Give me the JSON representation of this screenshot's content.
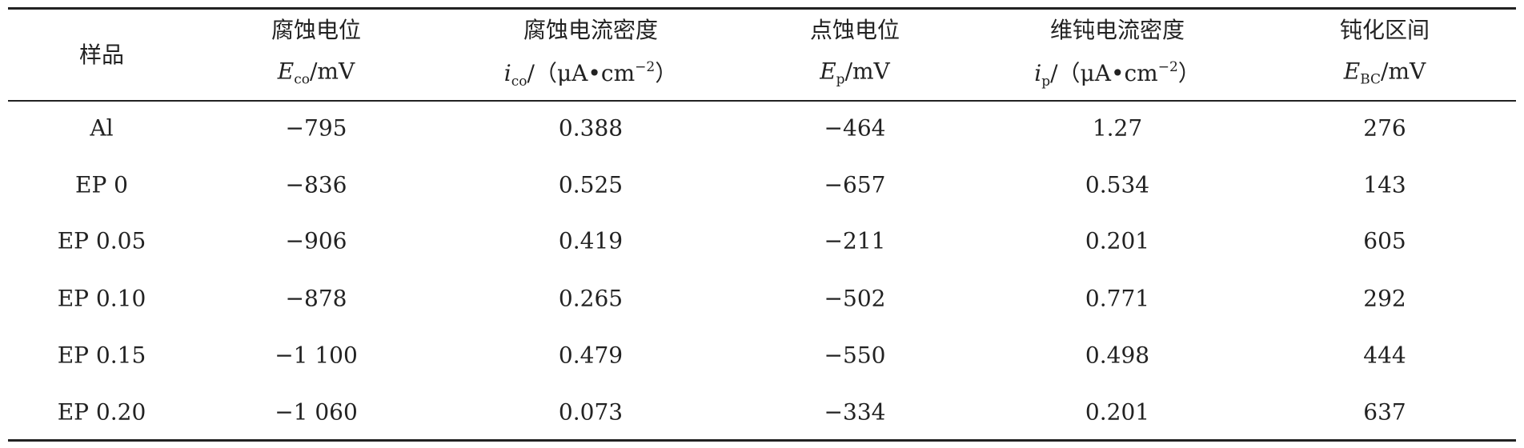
{
  "table": {
    "header": [
      {
        "name": "样品"
      },
      {
        "name": "腐蚀电位",
        "symbol": "E",
        "sub": "co",
        "unit": "/mV"
      },
      {
        "name": "腐蚀电流密度",
        "symbol": "i",
        "sub": "co",
        "unit": "/（μA•cm",
        "sup": "−2",
        "unit_end": "）"
      },
      {
        "name": "点蚀电位",
        "symbol": "E",
        "sub": "p",
        "unit": "/mV"
      },
      {
        "name": "维钝电流密度",
        "symbol": "i",
        "sub": "p",
        "unit": "/（μA•cm",
        "sup": "−2",
        "unit_end": "）"
      },
      {
        "name": "钝化区间",
        "symbol": "E",
        "sub": "BC",
        "unit": "/mV"
      }
    ],
    "rows": [
      [
        "Al",
        "−795",
        "0.388",
        "−464",
        "1.27",
        "276"
      ],
      [
        "EP 0",
        "−836",
        "0.525",
        "−657",
        "0.534",
        "143"
      ],
      [
        "EP 0.05",
        "−906",
        "0.419",
        "−211",
        "0.201",
        "605"
      ],
      [
        "EP 0.10",
        "−878",
        "0.265",
        "−502",
        "0.771",
        "292"
      ],
      [
        "EP 0.15",
        "−1 100",
        "0.479",
        "−550",
        "0.498",
        "444"
      ],
      [
        "EP 0.20",
        "−1 060",
        "0.073",
        "−334",
        "0.201",
        "637"
      ]
    ]
  }
}
